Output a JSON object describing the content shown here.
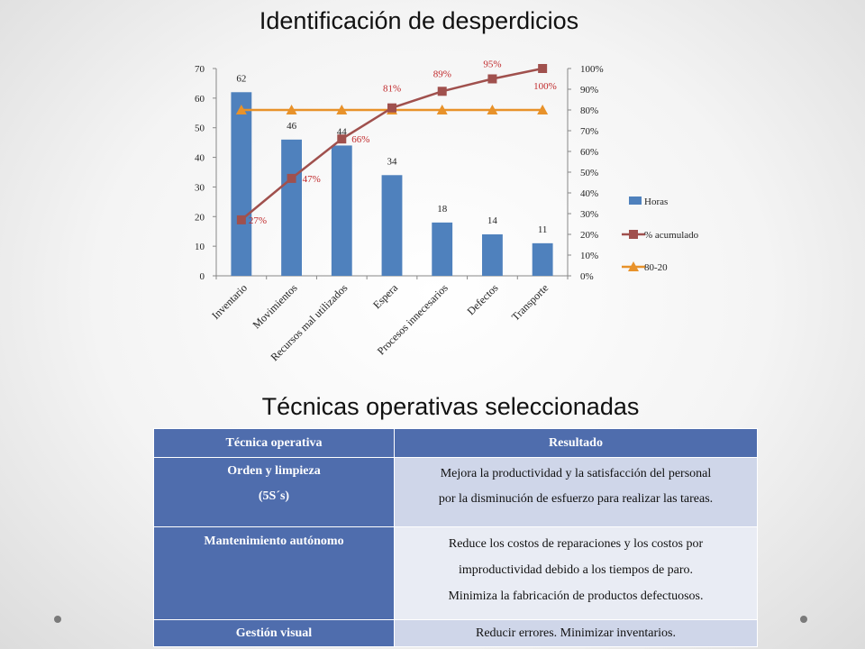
{
  "title": "Identificación de desperdicios",
  "subtitle": "Técnicas operativas seleccionadas",
  "chart_data": {
    "type": "bar",
    "categories": [
      "Inventario",
      "Movimientos",
      "Recursos mal utilizados",
      "Espera",
      "Procesos innecesarios",
      "Defectos",
      "Transporte"
    ],
    "series": [
      {
        "name": "Horas",
        "type": "bar",
        "values": [
          62,
          46,
          44,
          34,
          18,
          14,
          11
        ],
        "color": "#4f81bd",
        "axis": "left"
      },
      {
        "name": "% acumulado",
        "type": "line",
        "values": [
          27,
          47,
          66,
          81,
          89,
          95,
          100
        ],
        "labels": [
          "27%",
          "47%",
          "66%",
          "81%",
          "89%",
          "95%",
          "100%"
        ],
        "color": "#a0504d",
        "axis": "right"
      },
      {
        "name": "80-20",
        "type": "line",
        "values": [
          80,
          80,
          80,
          80,
          80,
          80,
          80
        ],
        "color": "#e8922a",
        "axis": "right"
      }
    ],
    "y_left": {
      "ylim": [
        0,
        70
      ],
      "ticks": [
        "0",
        "10",
        "20",
        "30",
        "40",
        "50",
        "60",
        "70"
      ]
    },
    "y_right": {
      "ylim": [
        0,
        100
      ],
      "ticks": [
        "0%",
        "10%",
        "20%",
        "30%",
        "40%",
        "50%",
        "60%",
        "70%",
        "80%",
        "90%",
        "100%"
      ]
    },
    "legend": "right",
    "grid": false
  },
  "table": {
    "headers": [
      "Técnica operativa",
      "Resultado"
    ],
    "rows": [
      {
        "tecnica": [
          "Orden y limpieza",
          "(5S´s)"
        ],
        "resultado": [
          "Mejora la productividad y la satisfacción del personal",
          "por la disminución de esfuerzo para realizar las tareas."
        ]
      },
      {
        "tecnica": [
          "Mantenimiento autónomo"
        ],
        "resultado": [
          "Reduce los costos de reparaciones y los costos por",
          "improductividad debido a los tiempos de paro.",
          "Minimiza la fabricación de productos defectuosos."
        ]
      },
      {
        "tecnica": [
          "Gestión visual"
        ],
        "resultado": [
          "Reducir errores. Minimizar inventarios."
        ]
      }
    ]
  },
  "colors": {
    "header_bg": "#4f6dad",
    "row_a": "#cfd6e9",
    "row_b": "#e9ecf4"
  }
}
